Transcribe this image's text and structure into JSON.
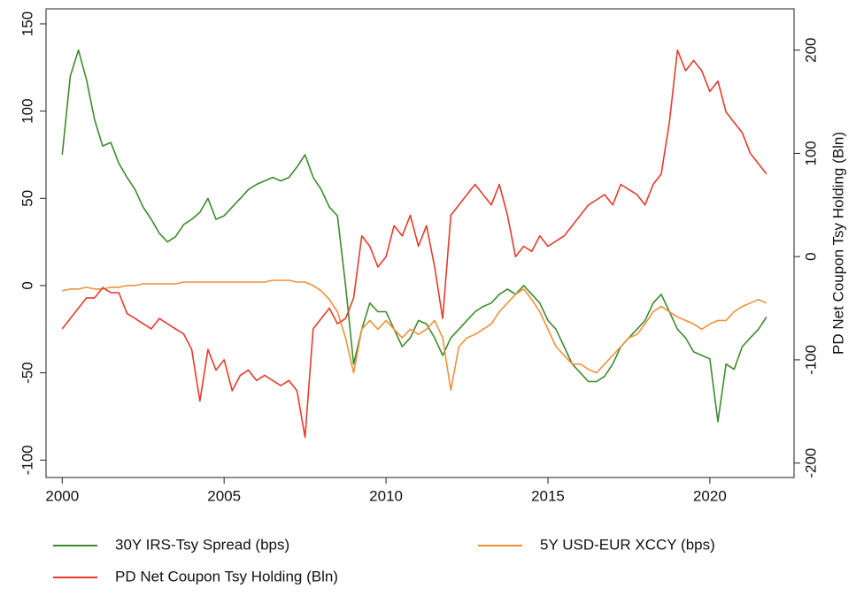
{
  "chart_data": {
    "type": "line",
    "x": [
      2000,
      2000.25,
      2000.5,
      2000.75,
      2001,
      2001.25,
      2001.5,
      2001.75,
      2002,
      2002.25,
      2002.5,
      2002.75,
      2003,
      2003.25,
      2003.5,
      2003.75,
      2004,
      2004.25,
      2004.5,
      2004.75,
      2005,
      2005.25,
      2005.5,
      2005.75,
      2006,
      2006.25,
      2006.5,
      2006.75,
      2007,
      2007.25,
      2007.5,
      2007.75,
      2008,
      2008.25,
      2008.5,
      2008.75,
      2009,
      2009.25,
      2009.5,
      2009.75,
      2010,
      2010.25,
      2010.5,
      2010.75,
      2011,
      2011.25,
      2011.5,
      2011.75,
      2012,
      2012.25,
      2012.5,
      2012.75,
      2013,
      2013.25,
      2013.5,
      2013.75,
      2014,
      2014.25,
      2014.5,
      2014.75,
      2015,
      2015.25,
      2015.5,
      2015.75,
      2016,
      2016.25,
      2016.5,
      2016.75,
      2017,
      2017.25,
      2017.5,
      2017.75,
      2018,
      2018.25,
      2018.5,
      2018.75,
      2019,
      2019.25,
      2019.5,
      2019.75,
      2020,
      2020.25,
      2020.5,
      2020.75,
      2021,
      2021.25,
      2021.5,
      2021.75
    ],
    "series": [
      {
        "name": "30Y IRS-Tsy Spread (bps)",
        "color": "#3d8b2c",
        "values": [
          75,
          120,
          135,
          118,
          95,
          80,
          82,
          70,
          62,
          55,
          45,
          38,
          30,
          25,
          28,
          35,
          38,
          42,
          50,
          38,
          40,
          45,
          50,
          55,
          58,
          60,
          62,
          60,
          62,
          68,
          75,
          62,
          55,
          45,
          40,
          0,
          -45,
          -25,
          -10,
          -15,
          -15,
          -25,
          -35,
          -30,
          -20,
          -22,
          -30,
          -40,
          -30,
          -25,
          -20,
          -15,
          -12,
          -10,
          -5,
          -2,
          -5,
          0,
          -5,
          -10,
          -20,
          -25,
          -35,
          -45,
          -50,
          -55,
          -55,
          -52,
          -45,
          -35,
          -30,
          -25,
          -20,
          -10,
          -5,
          -15,
          -25,
          -30,
          -38,
          -40,
          -42,
          -78,
          -45,
          -48,
          -35,
          -30,
          -25,
          -18
        ]
      },
      {
        "name": "5Y USD-EUR XCCY (bps)",
        "color": "#f0913a",
        "values": [
          -3,
          -2,
          -2,
          -1,
          -2,
          -2,
          -1,
          -1,
          0,
          0,
          1,
          1,
          1,
          1,
          1,
          2,
          2,
          2,
          2,
          2,
          2,
          2,
          2,
          2,
          2,
          2,
          3,
          3,
          3,
          2,
          2,
          0,
          -3,
          -8,
          -15,
          -30,
          -50,
          -25,
          -20,
          -25,
          -20,
          -25,
          -30,
          -25,
          -28,
          -25,
          -20,
          -30,
          -60,
          -35,
          -30,
          -28,
          -25,
          -22,
          -15,
          -10,
          -5,
          -2,
          -8,
          -15,
          -25,
          -35,
          -40,
          -45,
          -45,
          -48,
          -50,
          -45,
          -40,
          -35,
          -30,
          -28,
          -22,
          -15,
          -12,
          -15,
          -18,
          -20,
          -22,
          -25,
          -22,
          -20,
          -20,
          -15,
          -12,
          -10,
          -8,
          -10
        ]
      },
      {
        "name": "PD Net Coupon Tsy Holding (Bln)",
        "color": "#e63b2b",
        "axis": "y2",
        "values": [
          -70,
          -60,
          -50,
          -40,
          -40,
          -30,
          -35,
          -35,
          -55,
          -60,
          -65,
          -70,
          -60,
          -65,
          -70,
          -75,
          -90,
          -140,
          -90,
          -110,
          -100,
          -130,
          -115,
          -110,
          -120,
          -115,
          -120,
          -125,
          -120,
          -130,
          -175,
          -70,
          -60,
          -50,
          -65,
          -60,
          -40,
          20,
          10,
          -10,
          0,
          30,
          20,
          40,
          10,
          30,
          -10,
          -60,
          40,
          50,
          60,
          70,
          60,
          50,
          70,
          40,
          0,
          10,
          5,
          20,
          10,
          15,
          20,
          30,
          40,
          50,
          55,
          60,
          50,
          70,
          65,
          60,
          50,
          70,
          80,
          130,
          200,
          180,
          190,
          180,
          160,
          170,
          140,
          130,
          120,
          100,
          90,
          80
        ]
      }
    ],
    "y2_label": "PD Net Coupon Tsy Holding (Bln)",
    "xlim": [
      1999.5,
      2022.6
    ],
    "xticks": [
      2000,
      2005,
      2010,
      2015,
      2020
    ],
    "ylim": [
      -110,
      158.6
    ],
    "yticks": [
      -100,
      -50,
      0,
      50,
      100,
      150
    ],
    "y2lim": [
      -214,
      240
    ],
    "y2ticks": [
      -200,
      -100,
      0,
      100,
      200
    ]
  }
}
